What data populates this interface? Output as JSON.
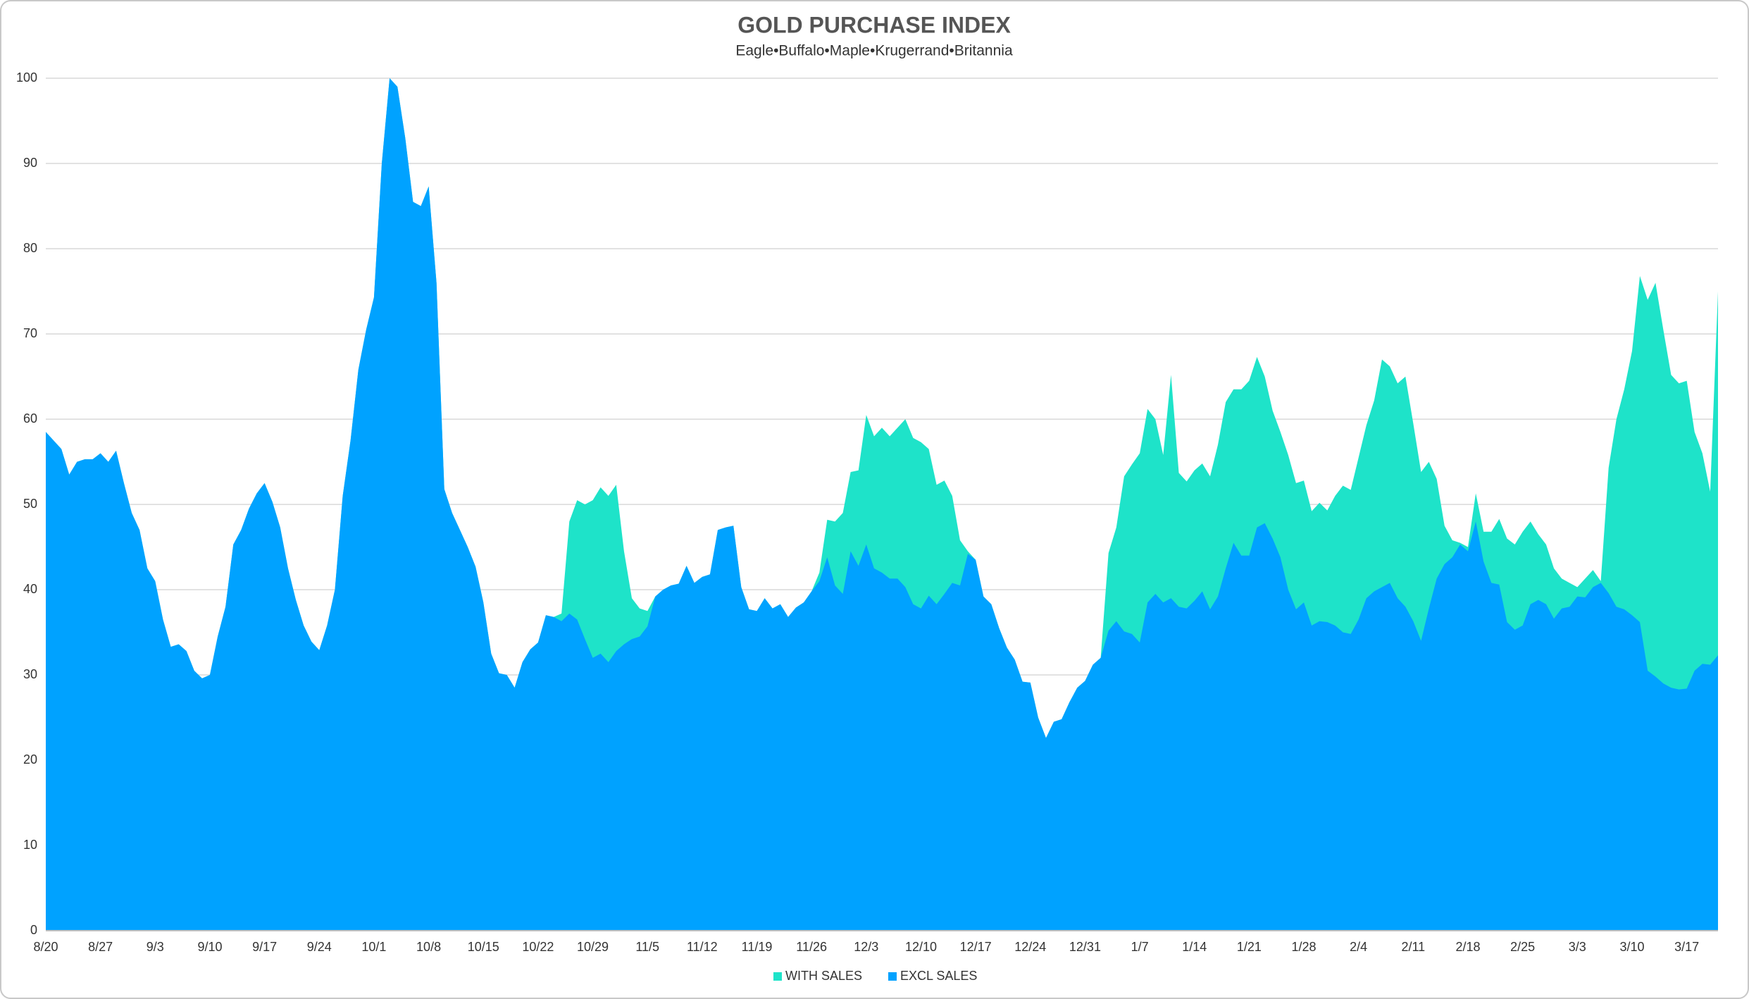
{
  "chart_data": {
    "type": "area",
    "title": "GOLD PURCHASE INDEX",
    "subtitle": "Eagle•Buffalo•Maple•Krugerrand•Britannia",
    "categories": [
      "8/20",
      null,
      null,
      null,
      null,
      null,
      null,
      "8/27",
      null,
      null,
      null,
      null,
      null,
      null,
      "9/3",
      null,
      null,
      null,
      null,
      null,
      null,
      "9/10",
      null,
      null,
      null,
      null,
      null,
      null,
      "9/17",
      null,
      null,
      null,
      null,
      null,
      null,
      "9/24",
      null,
      null,
      null,
      null,
      null,
      null,
      "10/1",
      null,
      null,
      null,
      null,
      null,
      null,
      "10/8",
      null,
      null,
      null,
      null,
      null,
      null,
      "10/15",
      null,
      null,
      null,
      null,
      null,
      null,
      "10/22",
      null,
      null,
      null,
      null,
      null,
      null,
      "10/29",
      null,
      null,
      null,
      null,
      null,
      null,
      "11/5",
      null,
      null,
      null,
      null,
      null,
      null,
      "11/12",
      null,
      null,
      null,
      null,
      null,
      null,
      "11/19",
      null,
      null,
      null,
      null,
      null,
      null,
      "11/26",
      null,
      null,
      null,
      null,
      null,
      null,
      "12/3",
      null,
      null,
      null,
      null,
      null,
      null,
      "12/10",
      null,
      null,
      null,
      null,
      null,
      null,
      "12/17",
      null,
      null,
      null,
      null,
      null,
      null,
      "12/24",
      null,
      null,
      null,
      null,
      null,
      null,
      "12/31",
      null,
      null,
      null,
      null,
      null,
      null,
      "1/7",
      null,
      null,
      null,
      null,
      null,
      null,
      "1/14",
      null,
      null,
      null,
      null,
      null,
      null,
      "1/21",
      null,
      null,
      null,
      null,
      null,
      null,
      "1/28",
      null,
      null,
      null,
      null,
      null,
      null,
      "2/4",
      null,
      null,
      null,
      null,
      null,
      null,
      "2/11",
      null,
      null,
      null,
      null,
      null,
      null,
      "2/18",
      null,
      null,
      null,
      null,
      null,
      null,
      "2/25",
      null,
      null,
      null,
      null,
      null,
      null,
      "3/3",
      null,
      null,
      null,
      null,
      null,
      null,
      "3/10",
      null,
      null,
      null,
      null,
      null,
      null,
      "3/17",
      null,
      null,
      null,
      null
    ],
    "series": [
      {
        "name": "WITH SALES",
        "color": "#1ee3c9",
        "values": [
          58.5,
          57.5,
          56.5,
          53.5,
          55,
          55.3,
          55.3,
          56,
          55,
          56.3,
          52.5,
          49,
          47,
          42.5,
          41,
          36.5,
          33.3,
          33.6,
          32.8,
          30.5,
          29.6,
          30,
          34.5,
          38,
          45.3,
          47,
          49.5,
          51.3,
          52.5,
          50.3,
          47.3,
          42.5,
          38.8,
          35.8,
          33.9,
          32.9,
          35.8,
          40,
          51,
          57.5,
          65.8,
          70.5,
          74.3,
          90,
          100,
          99,
          93,
          85.5,
          85,
          87.3,
          76,
          51.8,
          49,
          47,
          45,
          42.7,
          38.5,
          32.5,
          30.2,
          30,
          28.5,
          31.5,
          33,
          33.8,
          37,
          36.8,
          37.2,
          48,
          50.5,
          50,
          50.5,
          52,
          51,
          52.3,
          44.5,
          39,
          37.8,
          37.5,
          39.2,
          40,
          40.5,
          40.7,
          42.8,
          40.8,
          41.5,
          41.8,
          47,
          47.3,
          47.5,
          40.3,
          37.7,
          37.5,
          39,
          37.8,
          38.3,
          36.8,
          37.9,
          38.5,
          39.8,
          42,
          48.2,
          48,
          49,
          53.8,
          54,
          60.5,
          58,
          59,
          58,
          59,
          60,
          57.8,
          57.3,
          56.5,
          52.3,
          52.8,
          51,
          45.8,
          44.5,
          43.5,
          39.2,
          38.3,
          35.5,
          33.2,
          31.8,
          29.2,
          29.1,
          25,
          22.6,
          24.5,
          24.8,
          26.8,
          28.5,
          29.3,
          31.2,
          32,
          44.3,
          47.3,
          53.3,
          54.7,
          56,
          61.2,
          60,
          55.8,
          65.2,
          53.7,
          52.7,
          54,
          54.8,
          53.3,
          57,
          62,
          63.5,
          63.5,
          64.5,
          67.3,
          65,
          61,
          58.5,
          55.8,
          52.5,
          52.8,
          49.2,
          50.2,
          49.3,
          51,
          52.2,
          51.7,
          55.5,
          59.3,
          62.2,
          67,
          66.2,
          64.2,
          65,
          59.5,
          53.8,
          55,
          53,
          47.5,
          45.8,
          45.5,
          45,
          51.3,
          46.8,
          46.8,
          48.3,
          46,
          45.3,
          46.8,
          48,
          46.5,
          45.3,
          42.5,
          41.3,
          40.8,
          40.3,
          41.3,
          42.3,
          41,
          54.3,
          60,
          63.5,
          68,
          76.8,
          74,
          76,
          70.5,
          65.2,
          64.2,
          64.5,
          58.5,
          56,
          51.5,
          75
        ]
      },
      {
        "name": "EXCL SALES",
        "color": "#00a2ff",
        "values": [
          58.5,
          57.5,
          56.5,
          53.5,
          55,
          55.3,
          55.3,
          56,
          55,
          56.3,
          52.5,
          49,
          47,
          42.5,
          41,
          36.5,
          33.3,
          33.6,
          32.8,
          30.5,
          29.6,
          30,
          34.5,
          38,
          45.3,
          47,
          49.5,
          51.3,
          52.5,
          50.3,
          47.3,
          42.5,
          38.8,
          35.8,
          33.9,
          32.9,
          35.8,
          40,
          51,
          57.5,
          65.8,
          70.5,
          74.3,
          90,
          100,
          99,
          93,
          85.5,
          85,
          87.3,
          76,
          51.8,
          49,
          47,
          45,
          42.7,
          38.5,
          32.5,
          30.2,
          30,
          28.5,
          31.5,
          33,
          33.8,
          37,
          36.8,
          36.3,
          37.2,
          36.5,
          34.2,
          32,
          32.5,
          31.5,
          32.8,
          33.6,
          34.2,
          34.5,
          35.7,
          39.2,
          40,
          40.5,
          40.7,
          42.8,
          40.8,
          41.5,
          41.8,
          47,
          47.3,
          47.5,
          40.3,
          37.7,
          37.5,
          39,
          37.8,
          38.3,
          36.8,
          37.9,
          38.5,
          39.8,
          41,
          43.8,
          40.5,
          39.5,
          44.5,
          42.8,
          45.3,
          42.5,
          42,
          41.3,
          41.3,
          40.3,
          38.3,
          37.8,
          39.3,
          38.3,
          39.5,
          40.8,
          40.5,
          44.2,
          43.5,
          39.2,
          38.3,
          35.5,
          33.2,
          31.8,
          29.2,
          29.1,
          25,
          22.6,
          24.5,
          24.8,
          26.8,
          28.5,
          29.3,
          31.2,
          32,
          35.2,
          36.3,
          35.1,
          34.8,
          33.8,
          38.5,
          39.5,
          38.5,
          39,
          38,
          37.8,
          38.7,
          39.8,
          37.7,
          39.2,
          42.5,
          45.5,
          44,
          44,
          47.3,
          47.8,
          46,
          43.8,
          40,
          37.7,
          38.5,
          35.8,
          36.3,
          36.2,
          35.8,
          35,
          34.8,
          36.5,
          39,
          39.8,
          40.3,
          40.8,
          39,
          38,
          36.3,
          34,
          37.8,
          41.3,
          43,
          43.8,
          45.3,
          44.5,
          48,
          43.3,
          40.8,
          40.6,
          36.2,
          35.3,
          35.8,
          38.3,
          38.8,
          38.3,
          36.6,
          37.8,
          38,
          39.2,
          39.1,
          40.3,
          40.8,
          39.6,
          38,
          37.7,
          37,
          36.2,
          30.5,
          29.8,
          29,
          28.5,
          28.3,
          28.4,
          30.5,
          31.3,
          31.2,
          32.3
        ]
      }
    ],
    "ylim": [
      0,
      100
    ],
    "yticks": [
      0,
      10,
      20,
      30,
      40,
      50,
      60,
      70,
      80,
      90,
      100
    ],
    "grid": true,
    "legend": "bottom"
  }
}
